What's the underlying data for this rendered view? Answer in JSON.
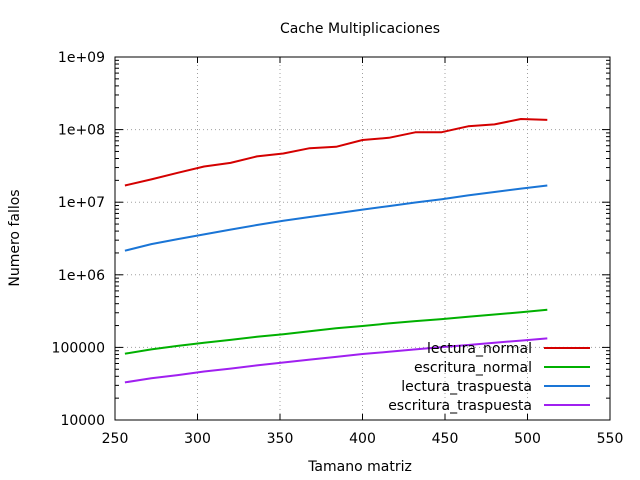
{
  "chart_data": {
    "type": "line",
    "title": "Cache Multiplicaciones",
    "xlabel": "Tamano matriz",
    "ylabel": "Numero fallos",
    "xlim": [
      250,
      550
    ],
    "ylim": [
      10000,
      1000000000
    ],
    "y_scale": "log",
    "grid": true,
    "legend_position": "bottom-right",
    "x_ticks": [
      250,
      300,
      350,
      400,
      450,
      500,
      550
    ],
    "x_tick_labels": [
      "250",
      "300",
      "350",
      "400",
      "450",
      "500",
      "550"
    ],
    "y_ticks": [
      10000,
      100000,
      1000000,
      10000000,
      100000000,
      1000000000
    ],
    "y_tick_labels": [
      "10000",
      "100000",
      "1e+06",
      "1e+07",
      "1e+08",
      "1e+09"
    ],
    "series": [
      {
        "name": "lectura_normal",
        "color": "#d40000",
        "x": [
          256,
          272,
          288,
          304,
          320,
          336,
          352,
          368,
          384,
          400,
          416,
          432,
          448,
          464,
          480,
          496,
          512
        ],
        "values": [
          17000000,
          20600000,
          25400000,
          31000000,
          34800000,
          42700000,
          46900000,
          55500000,
          58000000,
          71800000,
          77000000,
          91700000,
          92000000,
          111000000,
          118000000,
          140000000,
          136000000
        ]
      },
      {
        "name": "escritura_normal",
        "color": "#00b000",
        "x": [
          256,
          272,
          288,
          304,
          320,
          336,
          352,
          368,
          384,
          400,
          416,
          432,
          448,
          464,
          480,
          496,
          512
        ],
        "values": [
          82000.0,
          94000,
          105000,
          116000,
          127000,
          140000,
          152000,
          167000,
          183000,
          197000,
          214000,
          230000,
          245000,
          265000,
          284000,
          305000,
          330000
        ]
      },
      {
        "name": "lectura_traspuesta",
        "color": "#1a75d6",
        "x": [
          256,
          272,
          288,
          304,
          320,
          336,
          352,
          368,
          384,
          400,
          416,
          432,
          448,
          464,
          480,
          496,
          512
        ],
        "values": [
          2150000,
          2650000,
          3100000,
          3600000,
          4200000,
          4850000,
          5550000,
          6250000,
          7000000,
          7900000,
          8850000,
          9900000,
          11000000,
          12400000,
          13800000,
          15400000,
          17000000
        ]
      },
      {
        "name": "escritura_traspuesta",
        "color": "#a020f0",
        "x": [
          256,
          272,
          288,
          304,
          320,
          336,
          352,
          368,
          384,
          400,
          416,
          432,
          448,
          464,
          480,
          496,
          512
        ],
        "values": [
          33000,
          37500,
          41500,
          46500,
          51000,
          56500,
          62000,
          68000,
          74000,
          81000,
          87000,
          94000,
          101000,
          108000,
          116000,
          124000,
          133000
        ]
      }
    ]
  }
}
